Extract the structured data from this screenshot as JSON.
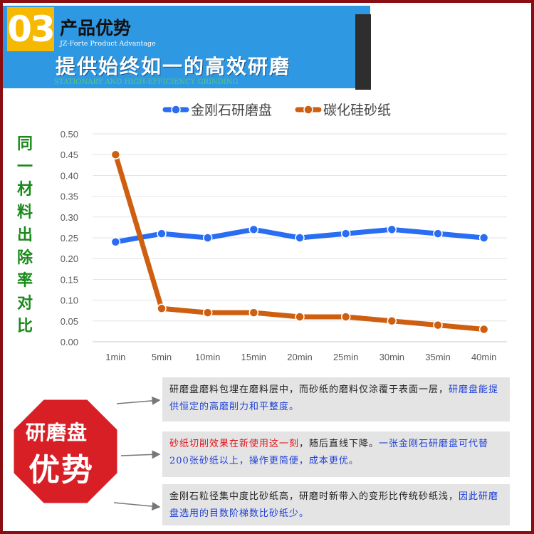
{
  "header": {
    "number": "03",
    "title": "产品优势",
    "subtitle_en": "JZ-Forte Product Advantage",
    "slogan": "提供始终如一的高效研磨",
    "slogan_en": "STATIONARY AND HIGH-EFFICIENCY GRINDING"
  },
  "side_label": [
    "同",
    "一",
    "材",
    "料",
    "出",
    "除",
    "率",
    "对",
    "比"
  ],
  "colors": {
    "frame": "#8a0d12",
    "header_blue": "#2f98e3",
    "series1": "#2a6df2",
    "series2": "#cf5f10",
    "badge": "#d81f26",
    "accent_blue": "#1d3fd6",
    "accent_red": "#e0141c"
  },
  "chart_data": {
    "type": "line",
    "categories": [
      "1min",
      "5min",
      "10min",
      "15min",
      "20min",
      "25min",
      "30min",
      "35min",
      "40min"
    ],
    "series": [
      {
        "name": "金刚石研磨盘",
        "color": "#2a6df2",
        "values": [
          0.24,
          0.26,
          0.25,
          0.27,
          0.25,
          0.26,
          0.27,
          0.26,
          0.25
        ]
      },
      {
        "name": "碳化硅砂纸",
        "color": "#cf5f10",
        "values": [
          0.45,
          0.08,
          0.07,
          0.07,
          0.06,
          0.06,
          0.05,
          0.04,
          0.03
        ]
      }
    ],
    "ylim": [
      0,
      0.5
    ],
    "yticks": [
      "0.00",
      "0.05",
      "0.10",
      "0.15",
      "0.20",
      "0.25",
      "0.30",
      "0.35",
      "0.40",
      "0.45",
      "0.50"
    ],
    "grid": true,
    "legend": "top-center"
  },
  "badge": {
    "line1": "研磨盘",
    "line2": "优势"
  },
  "notes": [
    {
      "parts": [
        {
          "text": "研磨盘磨料包埋在磨料层中，而砂纸的磨料仅涂覆于表面一层，",
          "style": ""
        },
        {
          "text": "研磨盘能提供恒定的高磨削力和平整度。",
          "style": "b"
        }
      ]
    },
    {
      "parts": [
        {
          "text": "砂纸切削效果在新使用这一刻",
          "style": "r"
        },
        {
          "text": "，随后直线下降。",
          "style": ""
        },
        {
          "text": "一张金刚石研磨盘可代替200张砂纸以上，操作更简便，成本更优。",
          "style": "b"
        }
      ]
    },
    {
      "parts": [
        {
          "text": "金刚石粒径集中度比砂纸高，研磨时新带入的变形比传统砂纸浅，",
          "style": ""
        },
        {
          "text": "因此研磨盘选用的目数阶梯数比砂纸少。",
          "style": "b"
        }
      ]
    }
  ]
}
